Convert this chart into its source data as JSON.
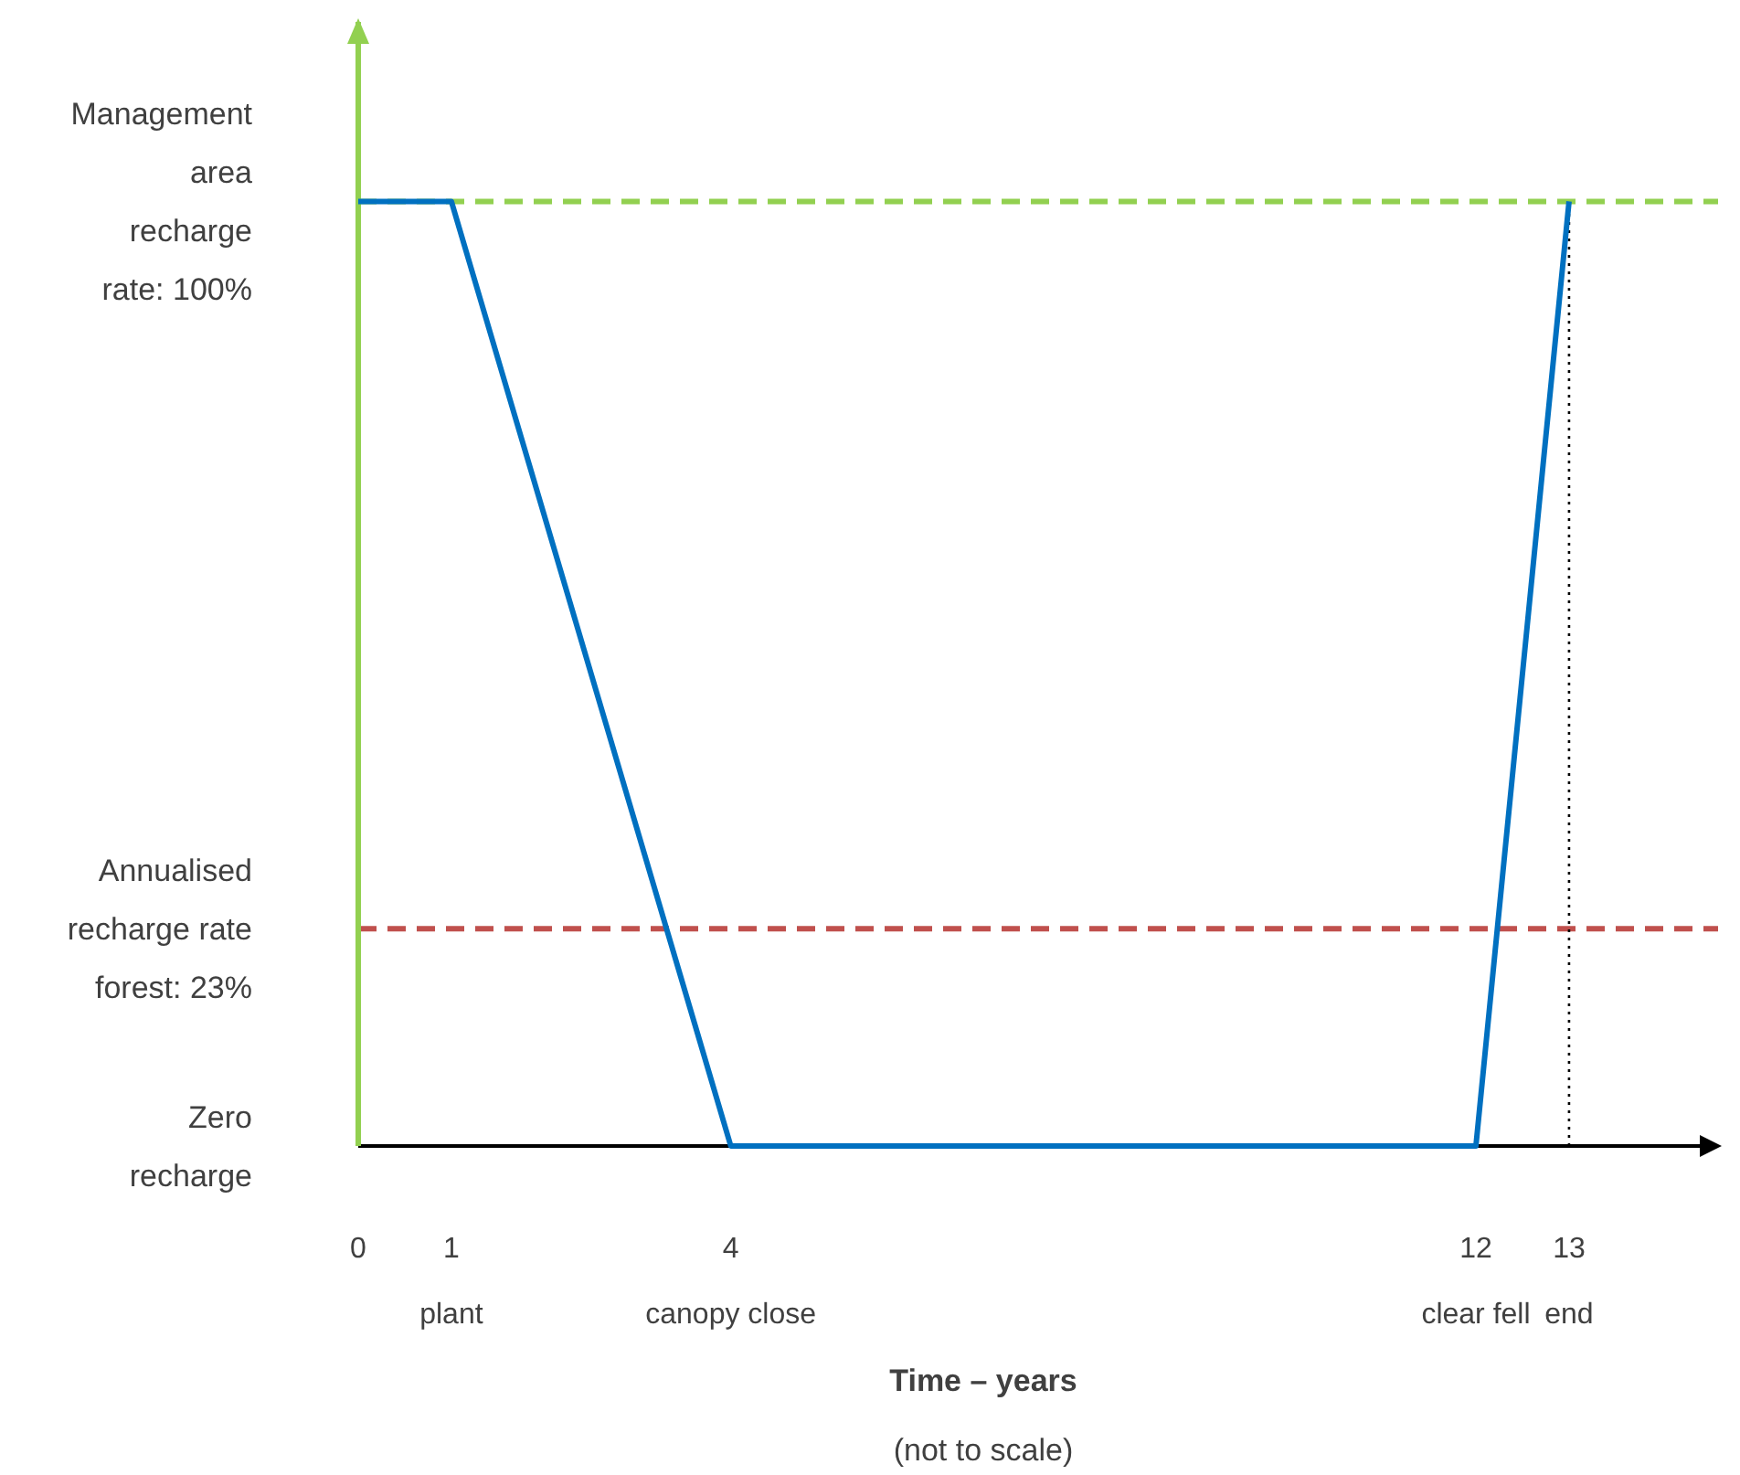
{
  "chart_data": {
    "type": "line",
    "xlabel": "Time – years",
    "annotations": [
      "(not to scale)"
    ],
    "x": [
      0,
      1,
      4,
      12,
      13
    ],
    "series": [
      {
        "color": "#0070c0",
        "values": [
          100,
          100,
          0,
          0,
          100
        ]
      }
    ],
    "xlim": [
      0,
      14.6
    ],
    "ylim": [
      0,
      119
    ],
    "xticks": [
      {
        "value": 0,
        "label": "0"
      },
      {
        "value": 1,
        "label": "1\nplant"
      },
      {
        "value": 4,
        "label": "4\ncanopy close"
      },
      {
        "value": 12,
        "label": "12\nclear fell"
      },
      {
        "value": 13,
        "label": "13\nend"
      }
    ],
    "yticks": [
      {
        "value": 0,
        "label": "Zero\nrecharge"
      },
      {
        "value": 23,
        "label": "Annualised\nrecharge rate\nforest: 23%"
      },
      {
        "value": 100,
        "label": "Management\narea\nrecharge\nrate: 100%"
      }
    ],
    "ref_lines": [
      {
        "axis": "y",
        "value": 100,
        "color": "#92d050",
        "line_style": "dashed"
      },
      {
        "axis": "y",
        "value": 23,
        "color": "#c0504d",
        "line_style": "dashed"
      },
      {
        "axis": "x",
        "value": 13,
        "color": "#000000",
        "line_style": "dotted"
      }
    ],
    "grid": false,
    "marker": "none",
    "line_style": "solid"
  }
}
